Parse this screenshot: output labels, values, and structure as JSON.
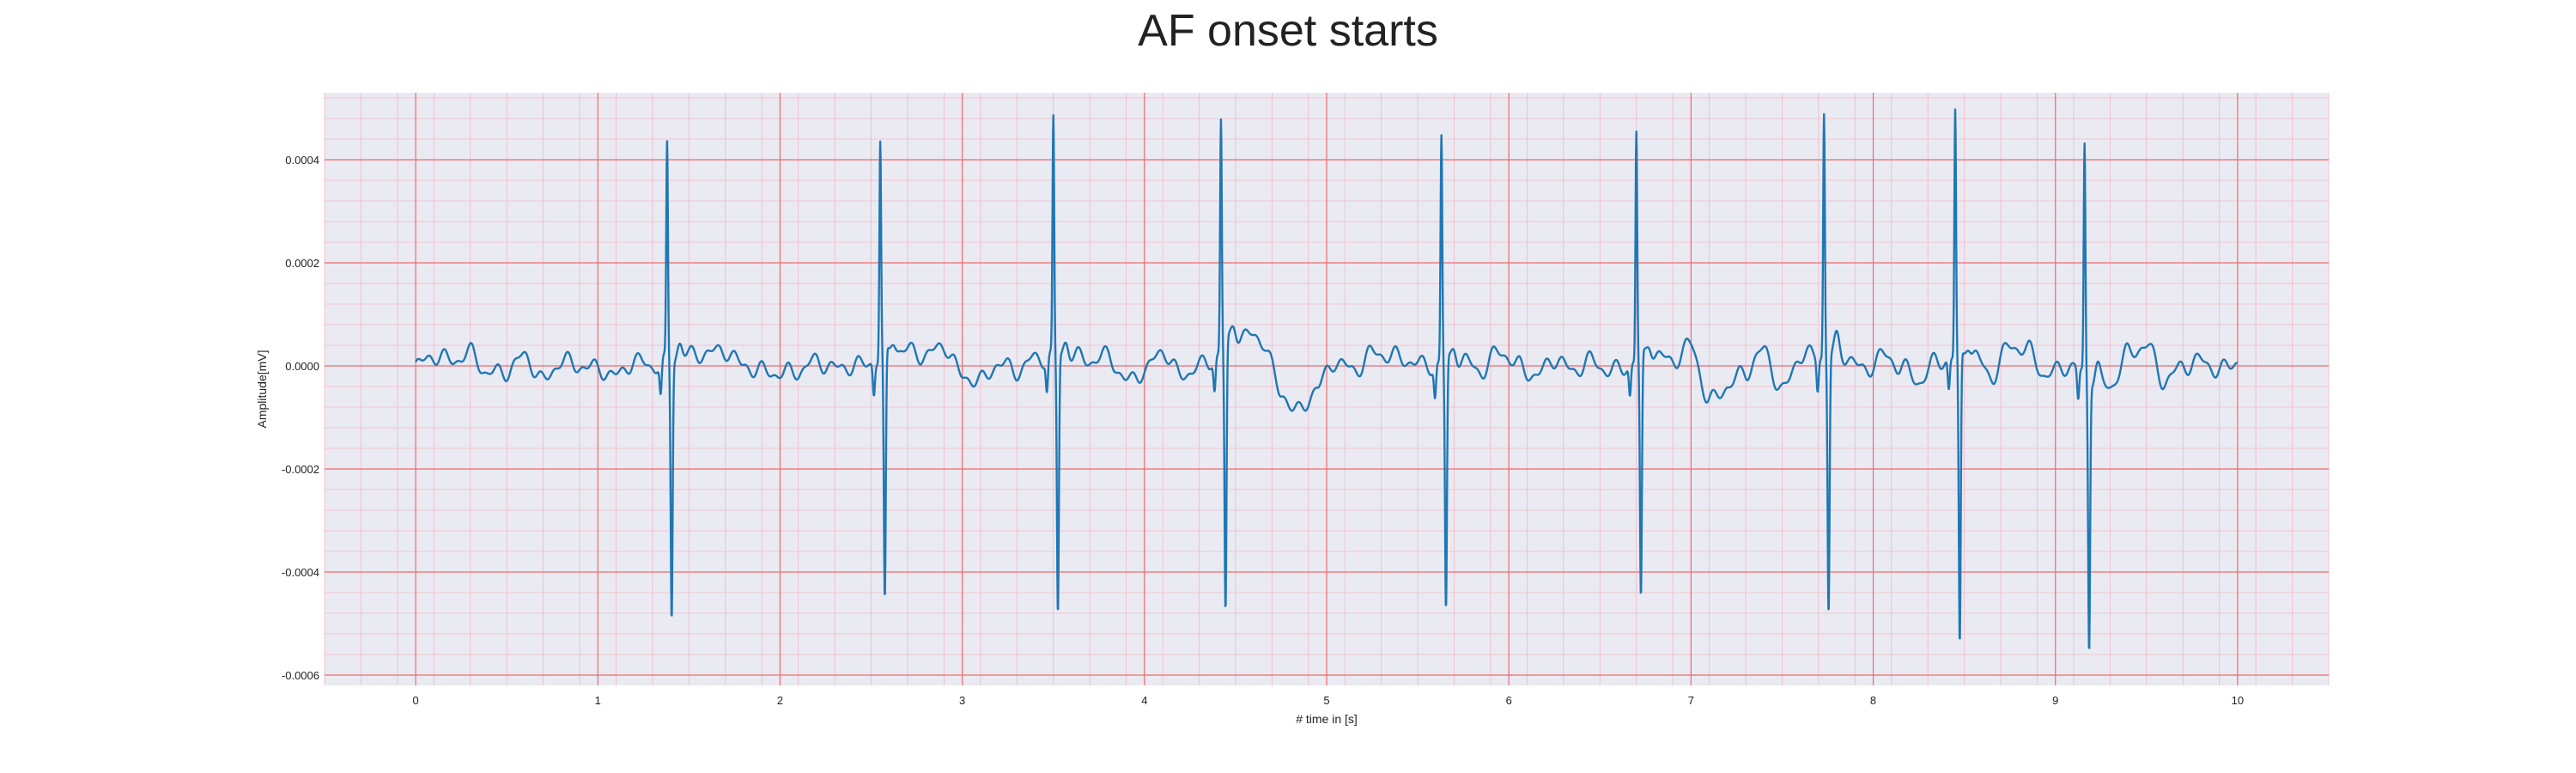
{
  "chart_data": {
    "type": "line",
    "title": "AF onset starts",
    "xlabel": "# time in [s]",
    "ylabel": "Amplitude[mV]",
    "xlim": [
      -0.5,
      10.5
    ],
    "ylim": [
      -0.00062,
      0.00053
    ],
    "x_ticks": [
      0,
      1,
      2,
      3,
      4,
      5,
      6,
      7,
      8,
      9,
      10
    ],
    "x_tick_labels": [
      "0",
      "1",
      "2",
      "3",
      "4",
      "5",
      "6",
      "7",
      "8",
      "9",
      "10"
    ],
    "y_ticks": [
      -0.0006,
      -0.0004,
      -0.0002,
      0.0,
      0.0002,
      0.0004
    ],
    "y_tick_labels": [
      "-0.0006",
      "-0.0004",
      "-0.0002",
      "0.0000",
      "0.0002",
      "0.0004"
    ],
    "grid": "major and minor",
    "series": [
      {
        "color": "#1f77b4",
        "r_peaks": [
          {
            "t": 1.38,
            "r": 0.000415,
            "s": -0.000495
          },
          {
            "t": 2.55,
            "r": 0.00042,
            "s": -0.00049
          },
          {
            "t": 3.5,
            "r": 0.000455,
            "s": -0.0005
          },
          {
            "t": 4.42,
            "r": 0.00045,
            "s": -0.00052
          },
          {
            "t": 5.63,
            "r": 0.00044,
            "s": -0.000485
          },
          {
            "t": 6.7,
            "r": 0.000445,
            "s": -0.000475
          },
          {
            "t": 7.73,
            "r": 0.000472,
            "s": -0.000495
          },
          {
            "t": 8.45,
            "r": 0.000478,
            "s": -0.00057
          },
          {
            "t": 9.16,
            "r": 0.000442,
            "s": -0.00052
          }
        ],
        "baseline_x": [
          0.0,
          0.1,
          0.2,
          0.3,
          0.4,
          0.5,
          0.6,
          0.7,
          0.8,
          0.9,
          1.0,
          1.1,
          1.2,
          1.3,
          1.5,
          1.6,
          1.7,
          1.8,
          1.9,
          2.0,
          2.1,
          2.2,
          2.3,
          2.4,
          2.7,
          2.8,
          2.9,
          3.0,
          3.1,
          3.2,
          3.3,
          3.4,
          3.6,
          3.7,
          3.8,
          3.9,
          4.0,
          4.1,
          4.2,
          4.3,
          4.55,
          4.65,
          4.75,
          4.85,
          4.95,
          5.05,
          5.15,
          5.25,
          5.35,
          5.45,
          5.55,
          5.75,
          5.85,
          5.95,
          6.05,
          6.15,
          6.25,
          6.35,
          6.45,
          6.55,
          6.8,
          6.9,
          7.0,
          7.1,
          7.2,
          7.3,
          7.4,
          7.5,
          7.6,
          7.85,
          7.95,
          8.05,
          8.15,
          8.25,
          8.35,
          8.55,
          8.65,
          8.75,
          8.85,
          8.95,
          9.05,
          9.3,
          9.4,
          9.5,
          9.6,
          9.7,
          9.8,
          9.9,
          10.0
        ],
        "baseline_y": [
          0.0,
          2e-05,
          1e-05,
          2.5e-05,
          -1.5e-05,
          -1e-05,
          2e-05,
          -3e-05,
          1e-05,
          0.0,
          -5e-06,
          -2e-05,
          1e-05,
          0.0,
          2e-05,
          2.5e-05,
          3e-05,
          0.0,
          -1e-05,
          -1.5e-05,
          -1e-05,
          1e-05,
          -5e-06,
          0.0,
          3e-05,
          2e-05,
          4e-05,
          -2e-05,
          -3e-05,
          5e-06,
          -1e-05,
          1.5e-05,
          2e-05,
          1e-05,
          2e-05,
          -3e-05,
          -1e-05,
          3e-05,
          -2e-05,
          0.0,
          6e-05,
          5e-05,
          -5.5e-05,
          -9e-05,
          -4e-05,
          1e-05,
          -1e-05,
          2.5e-05,
          2e-05,
          1e-05,
          0.0,
          1e-05,
          -1e-05,
          3e-05,
          0.0,
          -2e-05,
          1.5e-05,
          -1e-05,
          1e-05,
          -1e-05,
          2e-05,
          1e-05,
          4e-05,
          -7e-05,
          -4e-05,
          -1e-05,
          3e-05,
          -5e-05,
          2e-05,
          2e-05,
          -1e-05,
          2e-05,
          0.0,
          -3e-05,
          1e-05,
          2e-05,
          -2e-05,
          4e-05,
          3e-05,
          -2e-05,
          0.0,
          -4e-05,
          2.5e-05,
          4e-05,
          -3e-05,
          0.0,
          1e-05,
          -1e-05,
          1e-05
        ]
      }
    ]
  }
}
